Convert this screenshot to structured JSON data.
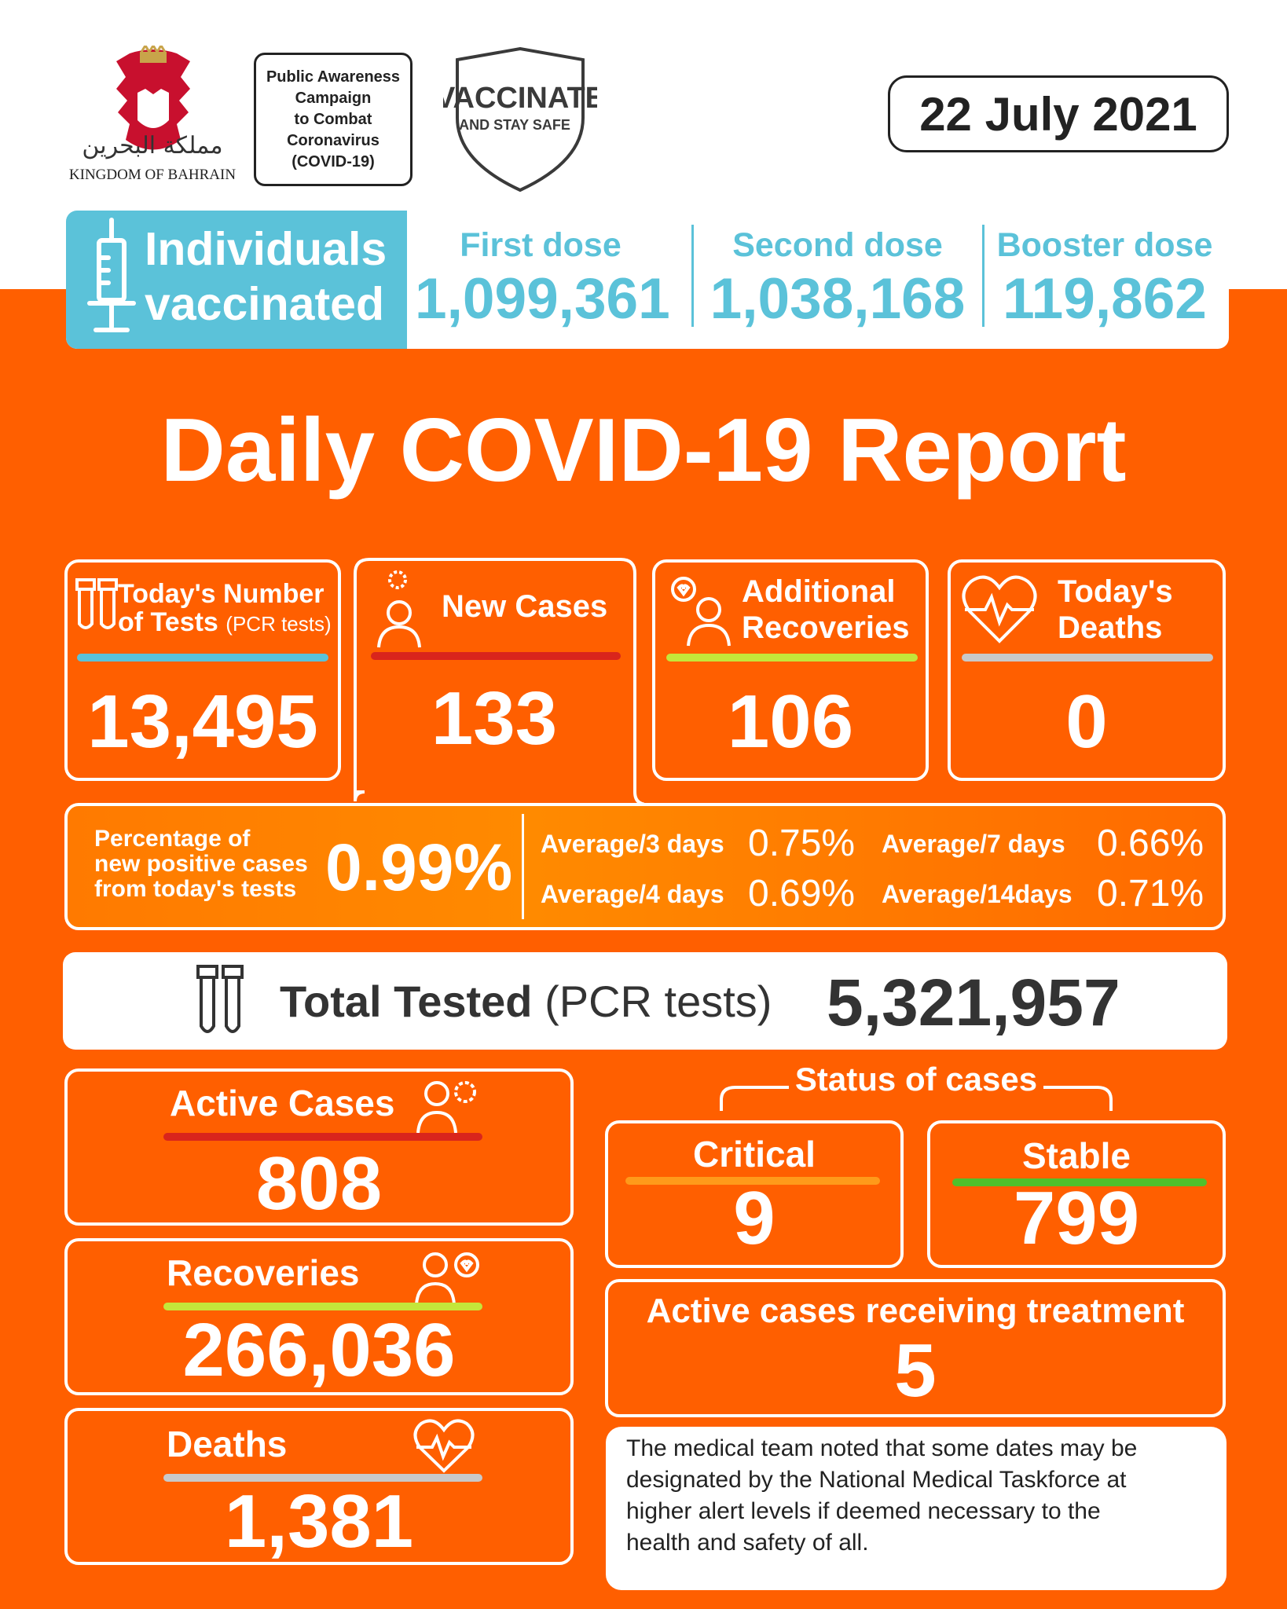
{
  "header": {
    "emblem_arabic": "مملكة البحرين",
    "emblem_english": "KINGDOM OF BAHRAIN",
    "campaign_lines": [
      "Public Awareness",
      "Campaign",
      "to Combat",
      "Coronavirus",
      "(COVID-19)"
    ],
    "vaccinate_title": "VACCINATE",
    "vaccinate_sub": "AND STAY SAFE",
    "date": "22 July 2021"
  },
  "vaccination": {
    "label_line1": "Individuals",
    "label_line2": "vaccinated",
    "doses": [
      {
        "label": "First dose",
        "value": "1,099,361"
      },
      {
        "label": "Second dose",
        "value": "1,038,168"
      },
      {
        "label": "Booster dose",
        "value": "119,862"
      }
    ]
  },
  "title": "Daily COVID-19 Report",
  "daily": {
    "tests": {
      "label_line1": "Today's Number",
      "label_line2": "of Tests",
      "label_note": "(PCR tests)",
      "value": "13,495"
    },
    "new_cases": {
      "label": "New Cases",
      "value": "133"
    },
    "recoveries": {
      "label_line1": "Additional",
      "label_line2": "Recoveries",
      "value": "106"
    },
    "deaths": {
      "label_line1": "Today's",
      "label_line2": "Deaths",
      "value": "0"
    }
  },
  "percentage": {
    "label_lines": [
      "Percentage of",
      "new positive cases",
      "from today's tests"
    ],
    "value": "0.99%",
    "averages": [
      {
        "label": "Average/3 days",
        "value": "0.75%"
      },
      {
        "label": "Average/7 days",
        "value": "0.66%"
      },
      {
        "label": "Average/4 days",
        "value": "0.69%"
      },
      {
        "label": "Average/14days",
        "value": "0.71%"
      }
    ]
  },
  "total_tested": {
    "label": "Total Tested",
    "note": "(PCR tests)",
    "value": "5,321,957"
  },
  "totals": {
    "active": {
      "label": "Active Cases",
      "value": "808"
    },
    "recoveries": {
      "label": "Recoveries",
      "value": "266,036"
    },
    "deaths": {
      "label": "Deaths",
      "value": "1,381"
    }
  },
  "status": {
    "title": "Status of cases",
    "critical": {
      "label": "Critical",
      "value": "9"
    },
    "stable": {
      "label": "Stable",
      "value": "799"
    },
    "treatment": {
      "label": "Active cases receiving treatment",
      "value": "5"
    }
  },
  "note_lines": [
    "The medical team noted that some dates may be",
    "designated by the National Medical Taskforce at",
    "higher alert levels if deemed necessary to the",
    "health and safety of all."
  ],
  "colors": {
    "orange": "#ff5f00",
    "teal": "#5bc2d9",
    "red": "#d9251c",
    "lime": "#c4e63a",
    "grey": "#c9c9c9",
    "amber": "#ff9a1a",
    "green": "#4fc12b"
  }
}
